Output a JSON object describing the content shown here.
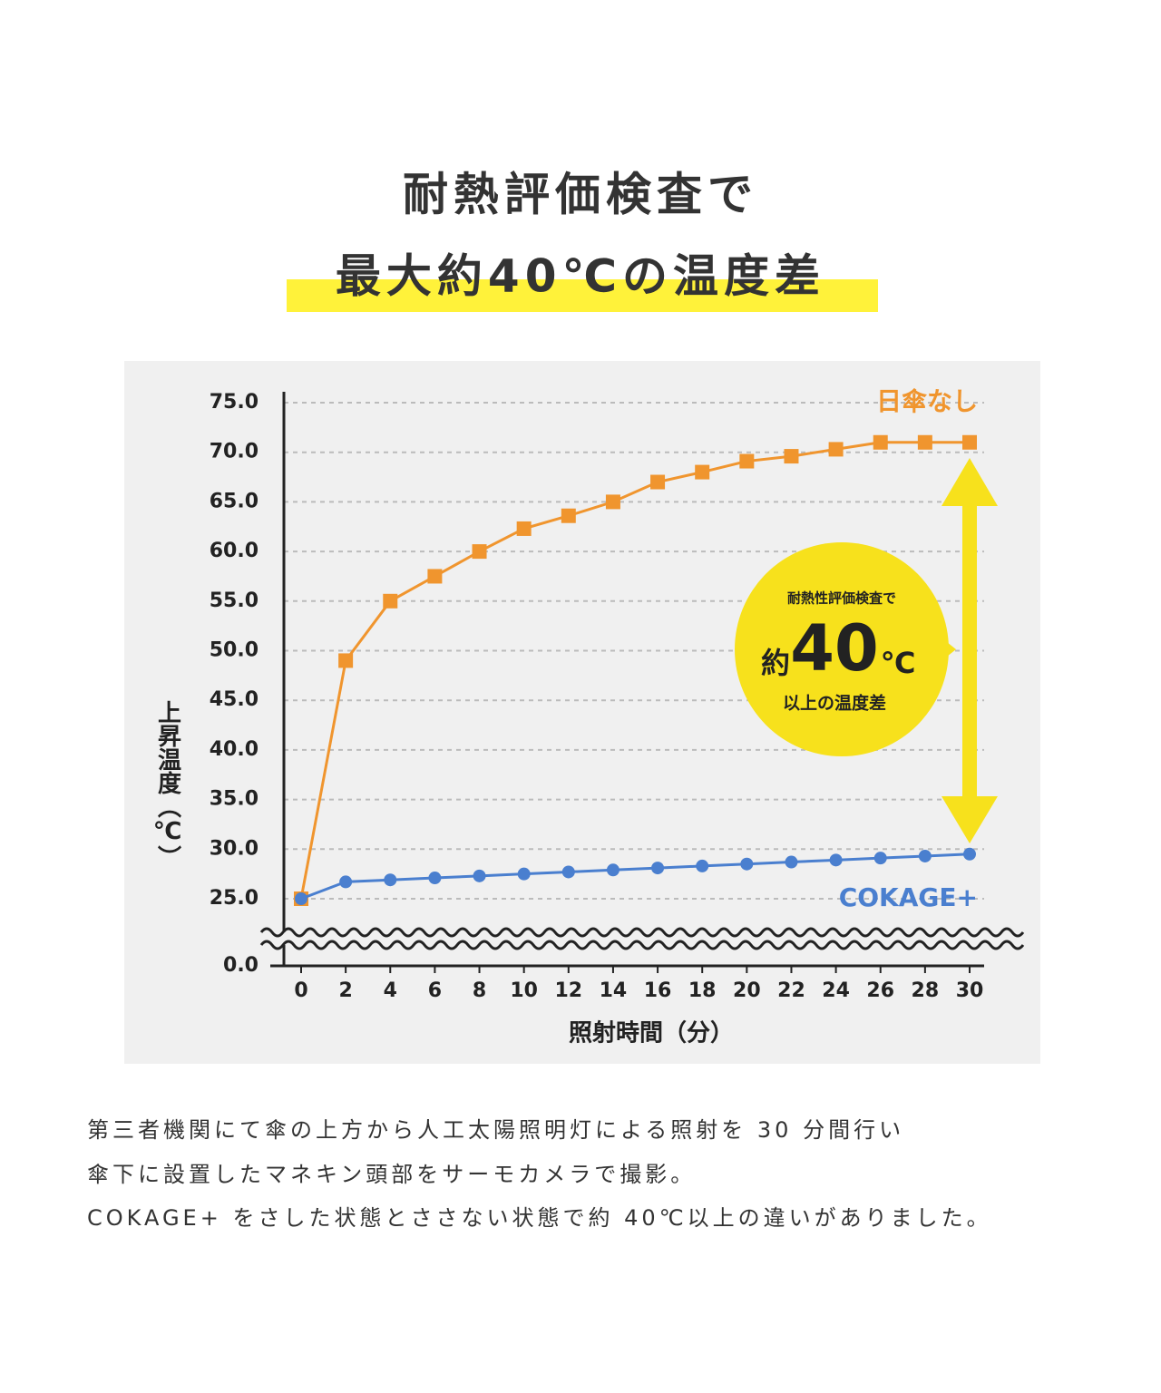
{
  "header": {
    "line1": "耐熱評価検査で",
    "line2": "最大約40℃の温度差"
  },
  "chart_data": {
    "type": "line",
    "x": [
      0,
      2,
      4,
      6,
      8,
      10,
      12,
      14,
      16,
      18,
      20,
      22,
      24,
      26,
      28,
      30
    ],
    "xlim": [
      0,
      30
    ],
    "xticks": [
      0,
      2,
      4,
      6,
      8,
      10,
      12,
      14,
      16,
      18,
      20,
      22,
      24,
      26,
      28,
      30
    ],
    "ylim": [
      0,
      75
    ],
    "axis_break": [
      0,
      25
    ],
    "yticks": [
      {
        "value": 0,
        "label": "0.0"
      },
      {
        "value": 25,
        "label": "25.0"
      },
      {
        "value": 30,
        "label": "30.0"
      },
      {
        "value": 35,
        "label": "35.0"
      },
      {
        "value": 40,
        "label": "40.0"
      },
      {
        "value": 45,
        "label": "45.0"
      },
      {
        "value": 50,
        "label": "50.0"
      },
      {
        "value": 55,
        "label": "55.0"
      },
      {
        "value": 60,
        "label": "60.0"
      },
      {
        "value": 65,
        "label": "65.0"
      },
      {
        "value": 70,
        "label": "70.0"
      },
      {
        "value": 75,
        "label": "75.0"
      }
    ],
    "grid": true,
    "x_label": "照射時間（分）",
    "y_label": "上昇温度（℃）",
    "series": [
      {
        "name": "日傘なし",
        "color": "#f0952e",
        "marker": "square",
        "values": [
          25,
          49,
          55,
          57.5,
          60,
          62.3,
          63.6,
          65,
          67,
          68,
          69.1,
          69.6,
          70.3,
          71,
          71,
          71
        ]
      },
      {
        "name": "COKAGE+",
        "color": "#4a7fcf",
        "marker": "circle",
        "values": [
          25,
          26.7,
          26.9,
          27.1,
          27.3,
          27.5,
          27.7,
          27.9,
          28.1,
          28.3,
          28.5,
          28.7,
          28.9,
          29.1,
          29.3,
          29.5
        ]
      }
    ],
    "badge": {
      "top": "耐熱性評価検査で",
      "prefix": "約",
      "number": "40",
      "unit": "℃",
      "bottom": "以上の温度差"
    }
  },
  "description": {
    "lines": [
      "第三者機関にて傘の上方から人工太陽照明灯による照射を 30 分間行い",
      "傘下に設置したマネキン頭部をサーモカメラで撮影。",
      "COKAGE+ をさした状態とささない状態で約 40℃以上の違いがありました。"
    ]
  }
}
